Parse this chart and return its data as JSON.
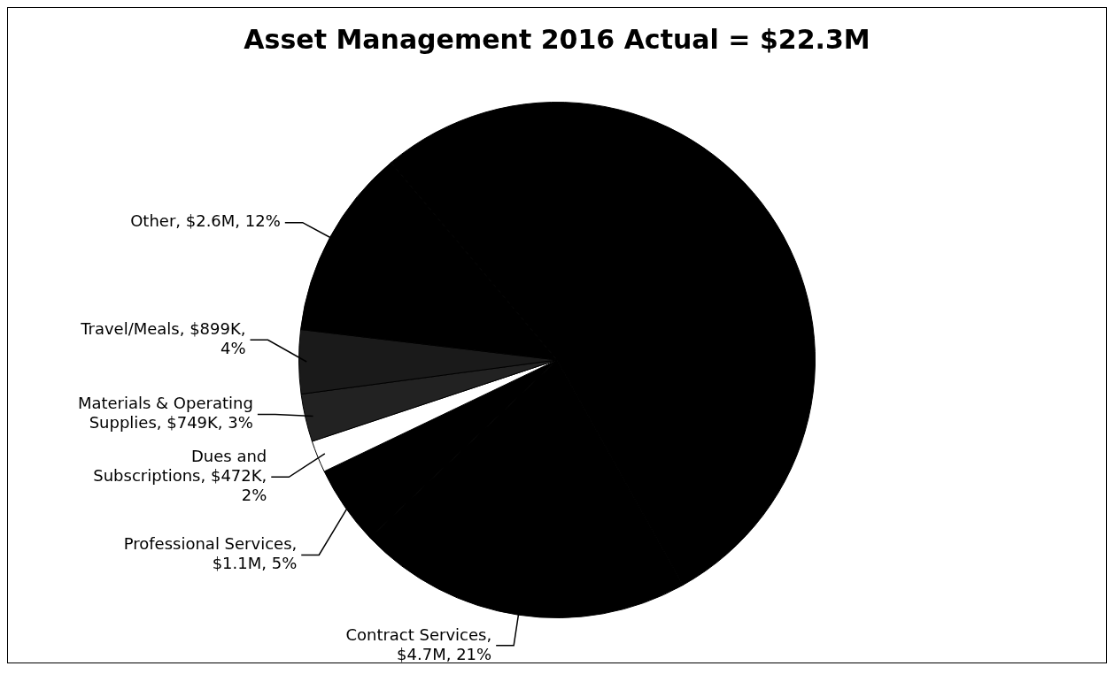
{
  "chart_data": {
    "type": "pie",
    "title": "Asset Management 2016 Actual = $22.3M",
    "categories": [
      null,
      "Contract Services, $4.7M, 21%",
      "Professional Services, $1.1M, 5%",
      "Dues and Subscriptions, $472K, 2%",
      "Materials & Operating Supplies, $749K, 3%",
      "Travel/Meals, $899K, 4%",
      "Other, $2.6M, 12%"
    ],
    "values": [
      53,
      21,
      5,
      2,
      3,
      4,
      12
    ],
    "colors": [
      "#000000",
      "#000000",
      "#000000",
      "#ffffff",
      "#222222",
      "#1a1a1a",
      "#000000"
    ],
    "legend": false
  }
}
